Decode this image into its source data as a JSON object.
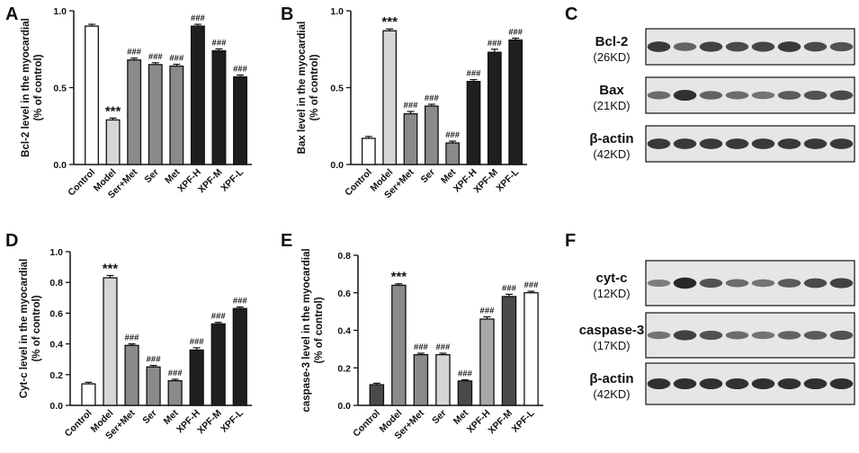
{
  "categories": [
    "Control",
    "Model",
    "Ser+Met",
    "Ser",
    "Met",
    "XPF-H",
    "XPF-M",
    "XPF-L"
  ],
  "colors": {
    "white": "#ffffff",
    "light": "#d6d6d6",
    "mid": "#8a8a8a",
    "dark": "#1f1f1f",
    "darkgray": "#4a4a4a",
    "lightgray2": "#a8a8a8",
    "axis": "#111111"
  },
  "chart_data": [
    {
      "panel": "A",
      "type": "bar",
      "ylabel_line1": "Bcl-2 level in the myocardial",
      "ylabel_line2": "(% of control)",
      "ylim": [
        0,
        1.0
      ],
      "yticks": [
        "0.0",
        "0.5",
        "1.0"
      ],
      "ytick_values": [
        0,
        0.5,
        1.0
      ],
      "values": [
        0.9,
        0.29,
        0.68,
        0.65,
        0.64,
        0.9,
        0.74,
        0.57
      ],
      "errors": [
        0.012,
        0.012,
        0.012,
        0.012,
        0.012,
        0.012,
        0.012,
        0.012
      ],
      "fills": [
        "white",
        "light",
        "mid",
        "mid",
        "mid",
        "dark",
        "dark",
        "dark"
      ],
      "annotations": [
        "",
        "***",
        "###",
        "###",
        "###",
        "###",
        "###",
        "###"
      ]
    },
    {
      "panel": "B",
      "type": "bar",
      "ylabel_line1": "Bax level in the myocardial",
      "ylabel_line2": "(% of control)",
      "ylim": [
        0,
        1.0
      ],
      "yticks": [
        "0.0",
        "0.5",
        "1.0"
      ],
      "ytick_values": [
        0,
        0.5,
        1.0
      ],
      "values": [
        0.17,
        0.87,
        0.33,
        0.38,
        0.14,
        0.54,
        0.73,
        0.81
      ],
      "errors": [
        0.012,
        0.012,
        0.015,
        0.012,
        0.012,
        0.012,
        0.02,
        0.012
      ],
      "fills": [
        "white",
        "light",
        "mid",
        "mid",
        "mid",
        "dark",
        "dark",
        "dark"
      ],
      "annotations": [
        "",
        "***",
        "###",
        "###",
        "###",
        "###",
        "###",
        "###"
      ]
    },
    {
      "panel": "D",
      "type": "bar",
      "ylabel_line1": "Cyt-c level in the myocardial",
      "ylabel_line2": "(% of control)",
      "ylim": [
        0,
        1.0
      ],
      "yticks": [
        "0.0",
        "0.2",
        "0.4",
        "0.6",
        "0.8",
        "1.0"
      ],
      "ytick_values": [
        0,
        0.2,
        0.4,
        0.6,
        0.8,
        1.0
      ],
      "values": [
        0.14,
        0.83,
        0.39,
        0.25,
        0.16,
        0.36,
        0.53,
        0.63
      ],
      "errors": [
        0.01,
        0.015,
        0.01,
        0.01,
        0.01,
        0.015,
        0.01,
        0.01
      ],
      "fills": [
        "white",
        "light",
        "mid",
        "mid",
        "mid",
        "dark",
        "dark",
        "dark"
      ],
      "annotations": [
        "",
        "***",
        "###",
        "###",
        "###",
        "###",
        "###",
        "###"
      ]
    },
    {
      "panel": "E",
      "type": "bar",
      "ylabel_line1": "caspase-3 level in the myocardial",
      "ylabel_line2": "(% of control)",
      "ylim": [
        0,
        0.8
      ],
      "yticks": [
        "0.0",
        "0.2",
        "0.4",
        "0.6",
        "0.8"
      ],
      "ytick_values": [
        0,
        0.2,
        0.4,
        0.6,
        0.8
      ],
      "values": [
        0.11,
        0.64,
        0.27,
        0.27,
        0.13,
        0.46,
        0.58,
        0.6
      ],
      "errors": [
        0.008,
        0.008,
        0.008,
        0.008,
        0.006,
        0.012,
        0.012,
        0.008
      ],
      "fills": [
        "darkgray",
        "mid",
        "mid",
        "light",
        "darkgray",
        "lightgray2",
        "darkgray",
        "white"
      ],
      "annotations": [
        "",
        "***",
        "###",
        "###",
        "###",
        "###",
        "###",
        "###"
      ]
    }
  ],
  "blots": {
    "C": {
      "letter": "C",
      "rows": [
        {
          "label": "Bcl-2",
          "kd": "(26KD)",
          "intensities": [
            0.85,
            0.6,
            0.8,
            0.75,
            0.78,
            0.85,
            0.75,
            0.7
          ]
        },
        {
          "label": "Bax",
          "kd": "(21KD)",
          "intensities": [
            0.55,
            0.9,
            0.6,
            0.55,
            0.5,
            0.65,
            0.7,
            0.75
          ]
        },
        {
          "label": "β-actin",
          "kd": "(42KD)",
          "intensities": [
            0.85,
            0.85,
            0.85,
            0.85,
            0.85,
            0.85,
            0.85,
            0.85
          ]
        }
      ]
    },
    "F": {
      "letter": "F",
      "rows": [
        {
          "label": "cyt-c",
          "kd": "(12KD)",
          "intensities": [
            0.45,
            0.95,
            0.7,
            0.55,
            0.5,
            0.65,
            0.75,
            0.8
          ]
        },
        {
          "label": "caspase-3",
          "kd": "(17KD)",
          "intensities": [
            0.5,
            0.8,
            0.7,
            0.55,
            0.5,
            0.6,
            0.65,
            0.7
          ]
        },
        {
          "label": "β-actin",
          "kd": "(42KD)",
          "intensities": [
            0.9,
            0.9,
            0.9,
            0.9,
            0.9,
            0.9,
            0.9,
            0.9
          ]
        }
      ]
    }
  }
}
